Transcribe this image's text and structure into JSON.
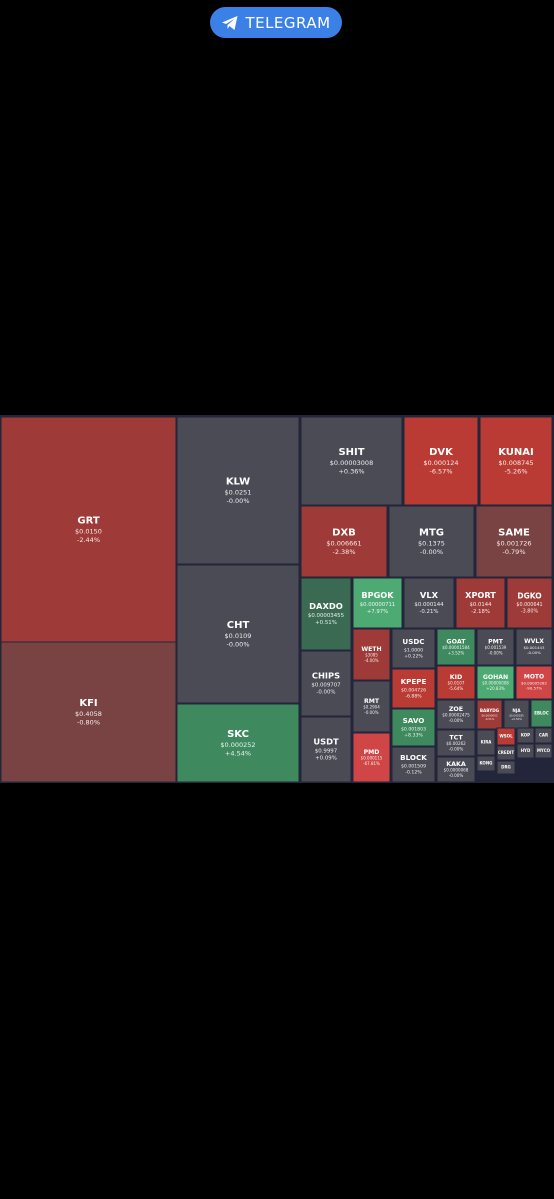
{
  "button": {
    "label": "TELEGRAM"
  },
  "tiles": [
    {
      "name": "GRT",
      "price": "$0.0150",
      "change": "-2.44%"
    },
    {
      "name": "KFI",
      "price": "$0.4058",
      "change": "-0.80%"
    },
    {
      "name": "KLW",
      "price": "$0.0251",
      "change": "-0.00%"
    },
    {
      "name": "CHT",
      "price": "$0.0109",
      "change": "-0.00%"
    },
    {
      "name": "SKC",
      "price": "$0.000252",
      "change": "+4.54%"
    },
    {
      "name": "SHIT",
      "price": "$0.00003008",
      "change": "+0.36%"
    },
    {
      "name": "DVK",
      "price": "$0.000124",
      "change": "-6.57%"
    },
    {
      "name": "KUNAI",
      "price": "$0.008745",
      "change": "-5.26%"
    },
    {
      "name": "DXB",
      "price": "$0.006661",
      "change": "-2.38%"
    },
    {
      "name": "MTG",
      "price": "$0.1375",
      "change": "-0.00%"
    },
    {
      "name": "SAME",
      "price": "$0.001726",
      "change": "-0.79%"
    },
    {
      "name": "DAXDO",
      "price": "$0.00003455",
      "change": "+0.51%"
    },
    {
      "name": "BPGOK",
      "price": "$0.00000711",
      "change": "+7.97%"
    },
    {
      "name": "VLX",
      "price": "$0.000144",
      "change": "-0.21%"
    },
    {
      "name": "XPORT",
      "price": "$0.0144",
      "change": "-2.18%"
    },
    {
      "name": "DGKO",
      "price": "$0.000641",
      "change": "-3.80%"
    },
    {
      "name": "CHIPS",
      "price": "$0.009707",
      "change": "-0.00%"
    },
    {
      "name": "USDT",
      "price": "$0.9997",
      "change": "+0.09%"
    },
    {
      "name": "WETH",
      "price": "$3085",
      "change": "-4.00%"
    },
    {
      "name": "RMT",
      "price": "$0.2904",
      "change": "-0.00%"
    },
    {
      "name": "PMD",
      "price": "$0.000115",
      "change": "-67.81%"
    },
    {
      "name": "USDC",
      "price": "$1.0000",
      "change": "+0.22%"
    },
    {
      "name": "KPEPE",
      "price": "$0.004726",
      "change": "-6.88%"
    },
    {
      "name": "SAVO",
      "price": "$0.001803",
      "change": "+8.33%"
    },
    {
      "name": "BLOCK",
      "price": "$0.001509",
      "change": "-0.12%"
    },
    {
      "name": "GOAT",
      "price": "$0.00001584",
      "change": "+3.52%"
    },
    {
      "name": "PMT",
      "price": "$0.001539",
      "change": "-0.00%"
    },
    {
      "name": "WVLX",
      "price": "$0.001443",
      "change": "-0.00%"
    },
    {
      "name": "KID",
      "price": "$0.0107",
      "change": "-5.64%"
    },
    {
      "name": "GOHAN",
      "price": "$0.00000008",
      "change": "+20.83%"
    },
    {
      "name": "MOTO",
      "price": "$0.00005282",
      "change": "-90.57%"
    },
    {
      "name": "ZOE",
      "price": "$0.00002475",
      "change": "-0.00%"
    },
    {
      "name": "BABYDG",
      "price": "$0.0000002",
      "change": "-0.51%"
    },
    {
      "name": "NJA",
      "price": "$0.000185",
      "change": "+0.50%"
    },
    {
      "name": "EBLOC"
    },
    {
      "name": "TCT",
      "price": "$0.00262",
      "change": "-0.00%"
    },
    {
      "name": "KAKA",
      "price": "$0.0000068",
      "change": "-0.00%"
    },
    {
      "name": "KIRA"
    },
    {
      "name": "WSOL"
    },
    {
      "name": "KOP"
    },
    {
      "name": "CAR"
    },
    {
      "name": "HYD"
    },
    {
      "name": "MYCO"
    },
    {
      "name": "CREDIT"
    },
    {
      "name": "KONG"
    },
    {
      "name": "DRG"
    }
  ]
}
